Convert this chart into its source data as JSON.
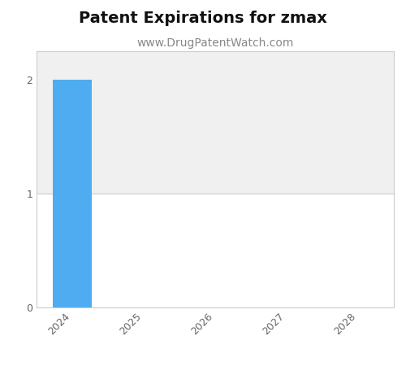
{
  "title": "Patent Expirations for zmax",
  "subtitle": "www.DrugPatentWatch.com",
  "years": [
    2024,
    2025,
    2026,
    2027,
    2028
  ],
  "values": [
    2,
    0,
    0,
    0,
    0
  ],
  "bar_color": "#4facf0",
  "ylim": [
    0,
    2.25
  ],
  "yticks": [
    0,
    1,
    2
  ],
  "background_above_1": "#f0f0f0",
  "background_below_1": "#ffffff",
  "title_fontsize": 14,
  "subtitle_fontsize": 10,
  "tick_fontsize": 9,
  "bar_width": 0.55,
  "spine_color": "#cccccc"
}
